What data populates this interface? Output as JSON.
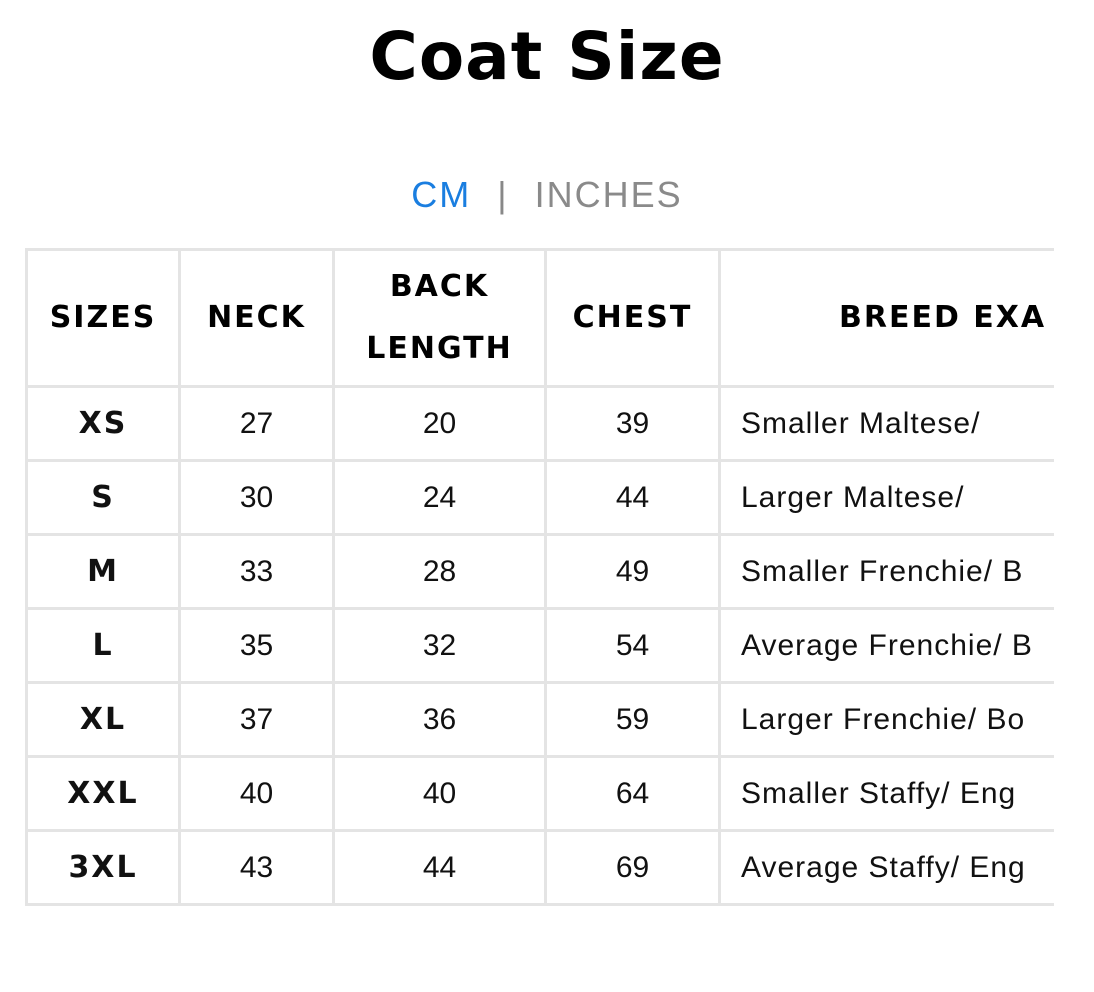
{
  "header": {
    "title": "Coat Size"
  },
  "units": {
    "active": "CM",
    "separator": "|",
    "inactive": "INCHES"
  },
  "table": {
    "columns": [
      "SIZES",
      "NECK",
      "BACK LENGTH",
      "CHEST",
      "BREED EXA"
    ],
    "rows": [
      [
        "XS",
        "27",
        "20",
        "39",
        "Smaller Maltese/"
      ],
      [
        "S",
        "30",
        "24",
        "44",
        "Larger Maltese/"
      ],
      [
        "M",
        "33",
        "28",
        "49",
        "Smaller Frenchie/ B"
      ],
      [
        "L",
        "35",
        "32",
        "54",
        "Average Frenchie/ B"
      ],
      [
        "XL",
        "37",
        "36",
        "59",
        "Larger Frenchie/ Bo"
      ],
      [
        "XXL",
        "40",
        "40",
        "64",
        "Smaller Staffy/ Eng"
      ],
      [
        "3XL",
        "43",
        "44",
        "69",
        "Average Staffy/ Eng"
      ]
    ]
  }
}
